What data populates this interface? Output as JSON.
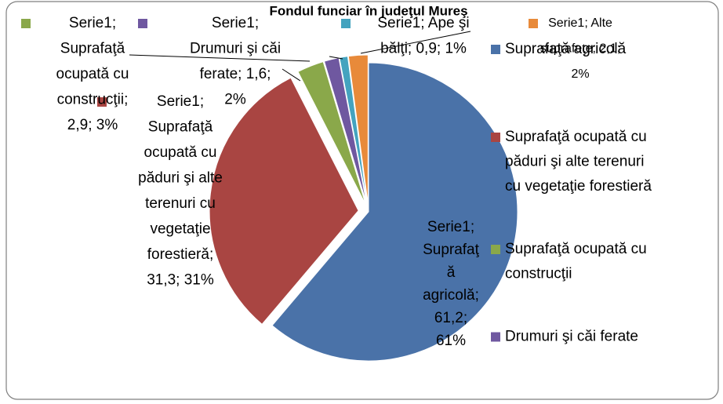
{
  "chart_data": {
    "type": "pie",
    "title": "Fondul funciar în judeţul Mureş",
    "series_name": "Serie1",
    "categories": [
      "Suprafaţă agricolă",
      "Suprafaţă ocupată cu păduri şi alte terenuri cu vegetaţie forestieră",
      "Suprafaţă ocupată cu construcţii",
      "Drumuri şi căi ferate",
      "Ape şi bălţi",
      "Alte suprafeţe"
    ],
    "values": [
      61.2,
      31.3,
      2.9,
      1.6,
      0.9,
      2.1
    ],
    "value_labels": [
      "Serie1;\nSuprafaţ\nă\nagricolă;\n61,2;\n61%",
      "Serie1;\nSuprafaţă\nocupată cu\npăduri şi alte\nterenuri cu\nvegetaţie\nforestieră;\n31,3; 31%",
      "Serie1;\nSuprafaţă\nocupată cu\nconstrucţii;\n2,9; 3%",
      "Serie1;\nDrumuri şi căi\nferate; 1,6;\n2%",
      "Serie1; Ape şi\nbălţi; 0,9; 1%",
      "Serie1; Alte\nsuprafeţe; 2,1;\n2%"
    ],
    "colors": [
      "#4a72a8",
      "#a94542",
      "#8aa84a",
      "#6f58a0",
      "#44a3bf",
      "#e88a3a"
    ],
    "legend": "right"
  }
}
